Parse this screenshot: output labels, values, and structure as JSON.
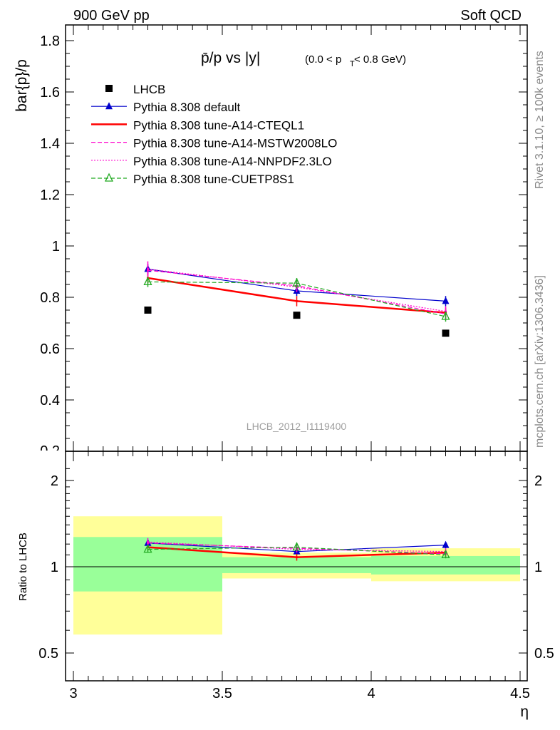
{
  "header": {
    "left": "900 GeV pp",
    "right": "Soft QCD"
  },
  "side_text": {
    "top": "Rivet 3.1.10, ≥ 100k events",
    "bottom": "mcplots.cern.ch [arXiv:1306.3436]"
  },
  "chart_data": [
    {
      "type": "scatter",
      "title_main": "p̄/p vs |y|",
      "title_sub": "(0.0 < p",
      "title_sub_index": "T",
      "title_sub_end": " < 0.8 GeV)",
      "ylabel": "bar{p}/p",
      "xlabel": "η",
      "watermark": "LHCB_2012_I1119400",
      "xlim": [
        3.0,
        4.5
      ],
      "ylim": [
        0.2,
        1.85
      ],
      "x_ticks": [
        "3",
        "3.5",
        "4",
        "4.5"
      ],
      "y_ticks": [
        "0.4",
        "0.6",
        "0.8",
        "1",
        "1.2",
        "1.4",
        "1.6",
        "1.8"
      ],
      "y_tick_cut": "0.2",
      "legend_position": "top-left",
      "series": [
        {
          "name": "LHCB",
          "color": "#000000",
          "marker": "square",
          "line": "none",
          "x": [
            3.25,
            3.75,
            4.25
          ],
          "y": [
            0.75,
            0.73,
            0.66
          ],
          "yerr": [
            0.0,
            0.0,
            0.0
          ]
        },
        {
          "name": "Pythia 8.308 default",
          "color": "#0000cc",
          "marker": "triangle",
          "line": "solid",
          "x": [
            3.25,
            3.75,
            4.25
          ],
          "y": [
            0.91,
            0.825,
            0.785
          ],
          "yerr": [
            0.02,
            0.02,
            0.02
          ]
        },
        {
          "name": "Pythia 8.308 tune-A14-CTEQL1",
          "color": "#ff0000",
          "marker": "none",
          "line": "solid-thick",
          "x": [
            3.25,
            3.75,
            4.25
          ],
          "y": [
            0.875,
            0.785,
            0.74
          ],
          "yerr": [
            0.02,
            0.02,
            0.02
          ]
        },
        {
          "name": "Pythia 8.308 tune-A14-MSTW2008LO",
          "color": "#ff00cc",
          "marker": "none",
          "line": "dashed",
          "x": [
            3.25,
            3.75,
            4.25
          ],
          "y": [
            0.905,
            0.845,
            0.735
          ],
          "yerr": [
            0.02,
            0.02,
            0.02
          ]
        },
        {
          "name": "Pythia 8.308 tune-A14-NNPDF2.3LO",
          "color": "#ff00cc",
          "marker": "none",
          "line": "dotted",
          "x": [
            3.25,
            3.75,
            4.25
          ],
          "y": [
            0.91,
            0.84,
            0.745
          ],
          "yerr": [
            0.03,
            0.02,
            0.02
          ]
        },
        {
          "name": "Pythia 8.308 tune-CUETP8S1",
          "color": "#22aa22",
          "marker": "open-triangle",
          "line": "dashed",
          "x": [
            3.25,
            3.75,
            4.25
          ],
          "y": [
            0.86,
            0.855,
            0.725
          ],
          "yerr": [
            0.02,
            0.02,
            0.02
          ]
        }
      ]
    },
    {
      "type": "scatter",
      "ylabel": "Ratio to LHCB",
      "xlabel": "η",
      "xlim": [
        3.0,
        4.5
      ],
      "ylim": [
        0.4,
        2.35
      ],
      "y_scale": "log",
      "x_ticks": [
        "3",
        "3.5",
        "4",
        "4.5"
      ],
      "y_ticks": [
        "0.5",
        "1",
        "2"
      ],
      "reference_line": 1.0,
      "bands": [
        {
          "x0": 3.0,
          "x1": 3.5,
          "green": [
            0.82,
            1.27
          ],
          "yellow": [
            0.58,
            1.5
          ]
        },
        {
          "x0": 3.5,
          "x1": 4.0,
          "green": [
            0.95,
            1.08
          ],
          "yellow": [
            0.91,
            1.12
          ]
        },
        {
          "x0": 4.0,
          "x1": 4.5,
          "green": [
            0.94,
            1.09
          ],
          "yellow": [
            0.89,
            1.16
          ]
        }
      ],
      "colors": {
        "green": "#99ff99",
        "yellow": "#ffff99"
      },
      "series": [
        {
          "name": "Pythia 8.308 default",
          "color": "#0000cc",
          "marker": "triangle",
          "line": "solid",
          "x": [
            3.25,
            3.75,
            4.25
          ],
          "y": [
            1.21,
            1.13,
            1.19
          ],
          "yerr": [
            0.03,
            0.03,
            0.03
          ]
        },
        {
          "name": "Pythia 8.308 tune-A14-CTEQL1",
          "color": "#ff0000",
          "marker": "none",
          "line": "solid-thick",
          "x": [
            3.25,
            3.75,
            4.25
          ],
          "y": [
            1.17,
            1.08,
            1.12
          ],
          "yerr": [
            0.03,
            0.03,
            0.03
          ]
        },
        {
          "name": "Pythia 8.308 tune-A14-MSTW2008LO",
          "color": "#ff00cc",
          "marker": "none",
          "line": "dashed",
          "x": [
            3.25,
            3.75,
            4.25
          ],
          "y": [
            1.21,
            1.16,
            1.11
          ],
          "yerr": [
            0.03,
            0.03,
            0.03
          ]
        },
        {
          "name": "Pythia 8.308 tune-A14-NNPDF2.3LO",
          "color": "#ff00cc",
          "marker": "none",
          "line": "dotted",
          "x": [
            3.25,
            3.75,
            4.25
          ],
          "y": [
            1.22,
            1.15,
            1.13
          ],
          "yerr": [
            0.04,
            0.03,
            0.03
          ]
        },
        {
          "name": "Pythia 8.308 tune-CUETP8S1",
          "color": "#22aa22",
          "marker": "open-triangle",
          "line": "dashed",
          "x": [
            3.25,
            3.75,
            4.25
          ],
          "y": [
            1.15,
            1.17,
            1.1
          ],
          "yerr": [
            0.03,
            0.03,
            0.03
          ]
        }
      ]
    }
  ]
}
